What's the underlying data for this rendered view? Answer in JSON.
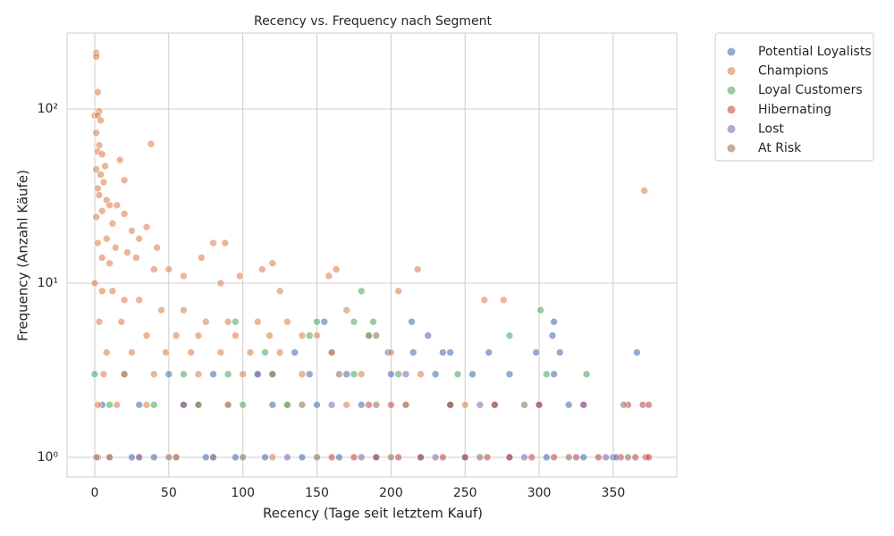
{
  "chart_data": {
    "type": "scatter",
    "title": "Recency vs. Frequency nach Segment",
    "x_label": "Recency (Tage seit letztem Kauf)",
    "y_label": "Frequency (Anzahl Käufe)",
    "xlim": [
      -18.7,
      392.9
    ],
    "ylim": [
      0.77,
      273
    ],
    "yscale": "log",
    "grid": true,
    "legend": "outside-upper-right",
    "xticks": [
      0,
      50,
      100,
      150,
      200,
      250,
      300,
      350
    ],
    "yticks": [
      {
        "value": 1,
        "label": "10⁰"
      },
      {
        "value": 10,
        "label": "10¹"
      },
      {
        "value": 100,
        "label": "10²"
      }
    ],
    "series": [
      {
        "name": "Potential Loyalists",
        "color": "#4c72b0",
        "x": [
          2,
          10,
          25,
          40,
          55,
          75,
          95,
          115,
          140,
          165,
          190,
          220,
          250,
          280,
          305,
          330,
          350,
          5,
          30,
          60,
          90,
          120,
          150,
          180,
          210,
          240,
          270,
          300,
          320,
          20,
          50,
          80,
          110,
          145,
          170,
          200,
          230,
          255,
          280,
          310,
          135,
          160,
          198,
          215,
          235,
          266,
          298,
          314,
          366,
          155,
          214,
          310,
          309,
          225,
          240
        ],
        "values": [
          1,
          1,
          1,
          1,
          1,
          1,
          1,
          1,
          1,
          1,
          1,
          1,
          1,
          1,
          1,
          1,
          1,
          2,
          2,
          2,
          2,
          2,
          2,
          2,
          2,
          2,
          2,
          2,
          2,
          3,
          3,
          3,
          3,
          3,
          3,
          3,
          3,
          3,
          3,
          3,
          4,
          4,
          4,
          4,
          4,
          4,
          4,
          4,
          4,
          6,
          6,
          6,
          5,
          5,
          4
        ]
      },
      {
        "name": "Champions",
        "color": "#dd8452",
        "x": [
          1,
          1,
          2,
          3,
          0,
          2,
          4,
          1,
          3,
          2,
          5,
          7,
          1,
          4,
          6,
          20,
          17,
          38,
          2,
          3,
          8,
          10,
          15,
          5,
          20,
          1,
          12,
          25,
          35,
          30,
          8,
          2,
          14,
          42,
          22,
          5,
          28,
          10,
          40,
          50,
          60,
          72,
          80,
          88,
          98,
          113,
          120,
          158,
          163,
          218,
          205,
          263,
          276,
          85,
          125,
          371,
          0,
          5,
          12,
          20,
          30,
          45,
          60,
          75,
          90,
          110,
          130,
          150,
          170,
          185,
          3,
          18,
          35,
          55,
          70,
          95,
          118,
          140,
          8,
          25,
          48,
          65,
          85,
          105,
          125,
          160,
          200,
          6,
          20,
          40,
          70,
          100,
          140,
          180,
          220,
          2,
          15,
          35,
          60,
          90,
          130,
          170,
          210,
          250,
          1,
          10,
          30,
          55,
          80,
          120
        ],
        "values": [
          210,
          200,
          125,
          97,
          92,
          92,
          86,
          73,
          62,
          57,
          55,
          47,
          45,
          42,
          38,
          39,
          51,
          63,
          35,
          32,
          30,
          28,
          28,
          26,
          25,
          24,
          22,
          20,
          21,
          18,
          18,
          17,
          16,
          16,
          15,
          14,
          14,
          13,
          12,
          12,
          11,
          14,
          17,
          17,
          11,
          12,
          13,
          11,
          12,
          12,
          9,
          8,
          8,
          10,
          9,
          34,
          10,
          9,
          9,
          8,
          8,
          7,
          7,
          6,
          6,
          6,
          6,
          5,
          7,
          5,
          6,
          6,
          5,
          5,
          5,
          5,
          5,
          5,
          4,
          4,
          4,
          4,
          4,
          4,
          4,
          4,
          4,
          3,
          3,
          3,
          3,
          3,
          3,
          3,
          3,
          2,
          2,
          2,
          2,
          2,
          2,
          2,
          2,
          2,
          1,
          1,
          1,
          1,
          1,
          1
        ]
      },
      {
        "name": "Loyal Customers",
        "color": "#55a868",
        "x": [
          0,
          10,
          40,
          70,
          100,
          130,
          60,
          90,
          120,
          175,
          205,
          95,
          150,
          180,
          188,
          280,
          301,
          332,
          175,
          145,
          115,
          185,
          305,
          245
        ],
        "values": [
          3,
          2,
          2,
          2,
          2,
          2,
          3,
          3,
          3,
          3,
          3,
          6,
          6,
          9,
          6,
          5,
          7,
          3,
          6,
          5,
          4,
          5,
          3,
          3
        ]
      },
      {
        "name": "Hibernating",
        "color": "#c44e52",
        "x": [
          160,
          175,
          190,
          205,
          220,
          235,
          250,
          265,
          280,
          295,
          310,
          325,
          340,
          355,
          365,
          372,
          374,
          200,
          240,
          270,
          300,
          330,
          360,
          370,
          374,
          185
        ],
        "values": [
          1,
          1,
          1,
          1,
          1,
          1,
          1,
          1,
          1,
          1,
          1,
          1,
          1,
          1,
          1,
          1,
          1,
          2,
          2,
          2,
          2,
          2,
          2,
          2,
          2,
          2
        ]
      },
      {
        "name": "Lost",
        "color": "#8172b3",
        "x": [
          30,
          80,
          130,
          180,
          230,
          290,
          345,
          352,
          60,
          160,
          260,
          330,
          110,
          210
        ],
        "values": [
          1,
          1,
          1,
          1,
          1,
          1,
          1,
          1,
          2,
          2,
          2,
          2,
          3,
          3
        ]
      },
      {
        "name": "At Risk",
        "color": "#937860",
        "x": [
          50,
          100,
          150,
          200,
          260,
          320,
          360,
          70,
          140,
          190,
          240,
          290,
          357,
          120,
          190,
          165
        ],
        "values": [
          1,
          1,
          1,
          1,
          1,
          1,
          1,
          2,
          2,
          2,
          2,
          2,
          2,
          3,
          5,
          3
        ]
      }
    ]
  }
}
